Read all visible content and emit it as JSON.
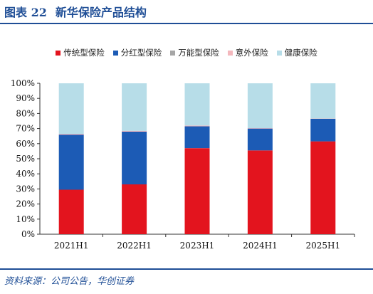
{
  "header": {
    "figure_label": "图表 22",
    "title": "新华保险产品结构"
  },
  "source": "资料来源：公司公告，华创证券",
  "colors": {
    "accent": "#1f4e96",
    "series": [
      "#e3141e",
      "#1c5bb5",
      "#a6a6a6",
      "#f4b8bd",
      "#b7dde8"
    ]
  },
  "chart_data": {
    "type": "bar",
    "stacked": true,
    "categories": [
      "2021H1",
      "2022H1",
      "2023H1",
      "2024H1",
      "2025H1"
    ],
    "series": [
      {
        "name": "传统型保险",
        "values": [
          29.5,
          33.0,
          57.0,
          55.5,
          61.5
        ]
      },
      {
        "name": "分红型保险",
        "values": [
          36.5,
          35.0,
          14.5,
          14.5,
          15.0
        ]
      },
      {
        "name": "万能型保险",
        "values": [
          0.0,
          0.0,
          0.0,
          0.0,
          0.0
        ]
      },
      {
        "name": "意外保险",
        "values": [
          0.5,
          0.5,
          0.5,
          0.3,
          0.2
        ]
      },
      {
        "name": "健康保险",
        "values": [
          33.5,
          31.5,
          28.0,
          29.7,
          23.3
        ]
      }
    ],
    "ylim": [
      0,
      100
    ],
    "yticks": [
      "0%",
      "10%",
      "20%",
      "30%",
      "40%",
      "50%",
      "60%",
      "70%",
      "80%",
      "90%",
      "100%"
    ],
    "grid": false,
    "legend_position": "top"
  }
}
